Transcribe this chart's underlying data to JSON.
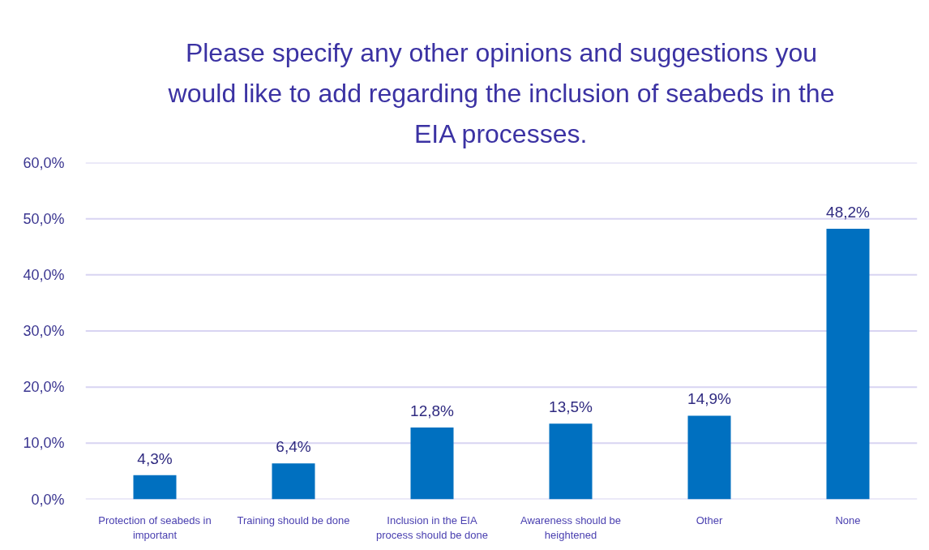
{
  "chart_data": {
    "type": "bar",
    "title": "Please specify any other opinions and suggestions you would like to add regarding the inclusion of seabeds in the EIA processes.",
    "categories": [
      "Protection of seabeds in important",
      "Training should be done",
      "Inclusion in the EIA process should be done",
      "Awareness should be heightened",
      "Other",
      "None"
    ],
    "values": [
      4.3,
      6.4,
      12.8,
      13.5,
      14.9,
      48.2
    ],
    "value_labels": [
      "4,3%",
      "6,4%",
      "12,8%",
      "13,5%",
      "14,9%",
      "48,2%"
    ],
    "color": "#0070c0",
    "ylim": [
      0,
      60
    ],
    "yticks": [
      {
        "value": 0,
        "label": "0,0%"
      },
      {
        "value": 10,
        "label": "10,0%"
      },
      {
        "value": 20,
        "label": "20,0%"
      },
      {
        "value": 30,
        "label": "30,0%"
      },
      {
        "value": 40,
        "label": "40,0%"
      },
      {
        "value": 50,
        "label": "50,0%"
      },
      {
        "value": 60,
        "label": "60,0%"
      }
    ],
    "grid": "y"
  }
}
